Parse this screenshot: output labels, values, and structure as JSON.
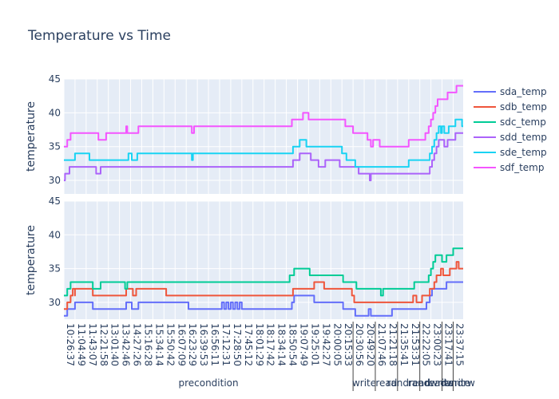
{
  "chart_data": {
    "type": "line",
    "title": "Temperature vs Time",
    "x_ticks": [
      "10:26:37",
      "11:04:49",
      "11:43:07",
      "12:21:58",
      "13:01:40",
      "13:42:46",
      "14:27:26",
      "15:16:28",
      "15:34:14",
      "15:50:42",
      "16:07:09",
      "16:23:29",
      "16:39:53",
      "16:56:11",
      "17:12:31",
      "17:28:50",
      "17:45:12",
      "18:01:29",
      "18:17:42",
      "18:34:14",
      "18:50:54",
      "19:07:49",
      "19:25:01",
      "19:42:27",
      "20:00:05",
      "20:15:33",
      "20:30:56",
      "20:49:20",
      "21:07:46",
      "21:21:18",
      "21:35:41",
      "21:53:31",
      "22:22:05",
      "23:00:23",
      "23:17:41",
      "23:37:15"
    ],
    "phases": [
      {
        "label": "precondition",
        "start": 0,
        "end": 26
      },
      {
        "label": "write",
        "start": 26,
        "end": 28
      },
      {
        "label": "read",
        "start": 28,
        "end": 30
      },
      {
        "label": "randread",
        "start": 30,
        "end": 32
      },
      {
        "label": "randwrite",
        "start": 32,
        "end": 34
      },
      {
        "label": "readwrite",
        "start": 34,
        "end": 35
      },
      {
        "label": "randrw",
        "start": 35,
        "end": 35.9
      }
    ],
    "subplots": [
      {
        "ylabel": "temperature",
        "ylim": [
          28,
          45
        ],
        "yticks": [
          30,
          35,
          40,
          45
        ],
        "series": [
          {
            "name": "sdd_temp",
            "color": "#AB63FA",
            "x": [
              0,
              0.1,
              0.2,
              0.5,
              2.8,
              2.9,
              3.1,
              3.3,
              5.9,
              6,
              6.2,
              20.3,
              20.6,
              20.7,
              21.2,
              21.8,
              22.2,
              22.5,
              22.9,
              23.2,
              23.5,
              24.5,
              24.8,
              25.1,
              25.3,
              26.5,
              27.3,
              27.5,
              27.6,
              27.8,
              27.9,
              28,
              28.2,
              28.4,
              28.5,
              28.7,
              29,
              32.6,
              32.9,
              33.1,
              33.3,
              33.5,
              33.7,
              34,
              34.2,
              34.5,
              34.7,
              34.9,
              35.2,
              35.4,
              35.8,
              35.9
            ],
            "y": [
              30,
              31,
              31,
              32,
              32,
              31,
              31,
              32,
              32,
              32,
              32,
              32,
              33,
              33,
              34,
              34,
              33,
              33,
              32,
              32,
              33,
              33,
              32,
              32,
              32,
              31,
              31,
              30,
              31,
              31,
              31,
              31,
              31,
              31,
              31,
              31,
              31,
              31,
              32,
              33,
              34,
              35,
              36,
              36,
              35,
              36,
              36,
              36,
              37,
              37,
              37,
              37
            ]
          },
          {
            "name": "sde_temp",
            "color": "#19D3F3",
            "x": [
              0,
              0.6,
              0.7,
              0.8,
              1,
              1,
              2.1,
              2.2,
              2.3,
              5.5,
              5.6,
              5.8,
              5.9,
              6.1,
              6.2,
              6.6,
              11.4,
              11.5,
              11.6,
              20.3,
              20.6,
              21.2,
              21.8,
              22.2,
              22.8,
              24,
              25,
              25.4,
              25.8,
              26.1,
              26.2,
              28.5,
              29.6,
              31,
              31.5,
              32.3,
              32.7,
              32.9,
              33.1,
              33.3,
              33.5,
              33.7,
              33.9,
              34,
              34.2,
              34.4,
              34.6,
              34.8,
              35,
              35.2,
              35.5,
              35.8,
              35.9
            ],
            "y": [
              33,
              33,
              33,
              33,
              34,
              34,
              34,
              34,
              33,
              33,
              33,
              34,
              34,
              33,
              33,
              34,
              34,
              33,
              34,
              34,
              35,
              36,
              35,
              35,
              35,
              35,
              34,
              33,
              33,
              33,
              32,
              32,
              32,
              33,
              33,
              33,
              33,
              34,
              35,
              36,
              37,
              38,
              37,
              38,
              37,
              37,
              38,
              38,
              38,
              39,
              39,
              38,
              38
            ]
          },
          {
            "name": "sdf_temp",
            "color": "#F455FF",
            "x": [
              0,
              0.3,
              0.6,
              1,
              2.4,
              2.8,
              3.1,
              3.2,
              3.8,
              5.4,
              5.5,
              5.6,
              5.7,
              5.9,
              6.5,
              6.7,
              11.4,
              11.5,
              11.7,
              20.3,
              20.5,
              21,
              21.5,
              21.8,
              22,
              22.1,
              24.1,
              24.7,
              25.3,
              25.8,
              26,
              26.6,
              27.3,
              27.4,
              27.6,
              27.8,
              28,
              28.4,
              29.5,
              30.5,
              31,
              31.5,
              32.2,
              32.5,
              32.8,
              33,
              33.2,
              33.4,
              33.6,
              33.8,
              34,
              34.2,
              34.5,
              35,
              35.3,
              35.6,
              35.9
            ],
            "y": [
              35,
              36,
              37,
              37,
              37,
              37,
              36,
              36,
              37,
              37,
              37,
              38,
              37,
              37,
              37,
              38,
              38,
              37,
              38,
              38,
              39,
              39,
              40,
              40,
              39,
              39,
              39,
              39,
              38,
              38,
              37,
              37,
              36,
              36,
              35,
              36,
              36,
              35,
              35,
              35,
              36,
              36,
              36,
              37,
              38,
              39,
              40,
              41,
              42,
              42,
              42,
              42,
              43,
              43,
              44,
              44,
              44
            ]
          }
        ]
      },
      {
        "ylabel": "temperature",
        "ylim": [
          27.5,
          45
        ],
        "yticks": [
          30,
          35,
          40,
          45
        ],
        "series": [
          {
            "name": "sda_temp",
            "color": "#636EFA",
            "x": [
              0,
              0.3,
              0.6,
              1,
              2.3,
              2.6,
              5.4,
              5.6,
              5.8,
              6.1,
              6.7,
              11.1,
              11.2,
              11.3,
              14,
              14.2,
              14.4,
              14.6,
              14.8,
              15,
              15.2,
              15.4,
              15.6,
              15.8,
              16,
              16.2,
              20,
              20.5,
              20.7,
              21.3,
              21.8,
              22.1,
              22.5,
              23,
              24.2,
              25.1,
              25.9,
              26.2,
              27.3,
              27.4,
              27.6,
              28,
              28.2,
              28.4,
              28.7,
              29.4,
              29.5,
              30.6,
              31.3,
              31.6,
              32.1,
              32.3,
              32.6,
              32.9,
              33.1,
              33.3,
              33.8,
              34.4,
              34.8,
              35.1,
              35.4,
              35.7,
              35.9
            ],
            "y": [
              28,
              29,
              29,
              30,
              30,
              29,
              29,
              30,
              30,
              29,
              30,
              30,
              29,
              29,
              29,
              30,
              29,
              30,
              29,
              30,
              29,
              30,
              29,
              30,
              29,
              29,
              29,
              30,
              31,
              31,
              31,
              31,
              30,
              30,
              30,
              29,
              29,
              28,
              28,
              29,
              28,
              28,
              28,
              28,
              28,
              28,
              29,
              29,
              29,
              29,
              29,
              29,
              30,
              31,
              32,
              32,
              32,
              33,
              33,
              33,
              33,
              33,
              33
            ]
          },
          {
            "name": "sdb_temp",
            "color": "#EF553B",
            "x": [
              0,
              0.3,
              0.6,
              0.8,
              1,
              1,
              2.2,
              2.5,
              2.6,
              2.8,
              5.3,
              5.6,
              6.2,
              6.5,
              9,
              9.2,
              11,
              11.3,
              20,
              20.2,
              20.6,
              22.5,
              22.9,
              23.4,
              25.1,
              25.9,
              26.1,
              27.8,
              29,
              31.2,
              31.4,
              31.7,
              32.2,
              32.5,
              32.9,
              33.3,
              33.5,
              33.9,
              34.1,
              34.3,
              34.7,
              35,
              35.3,
              35.5,
              35.7,
              35.9
            ],
            "y": [
              29,
              30,
              31,
              32,
              31,
              32,
              32,
              32,
              31,
              31,
              31,
              32,
              31,
              32,
              32,
              31,
              31,
              31,
              31,
              31,
              32,
              33,
              33,
              32,
              32,
              31,
              30,
              30,
              30,
              30,
              31,
              30,
              31,
              31,
              32,
              33,
              34,
              35,
              34,
              34,
              35,
              35,
              36,
              35,
              35,
              35
            ]
          },
          {
            "name": "sdc_temp",
            "color": "#00CC96",
            "x": [
              0,
              0.3,
              0.6,
              2.3,
              2.6,
              3.1,
              3.3,
              5.4,
              5.5,
              5.7,
              6,
              20,
              20.3,
              20.7,
              21.3,
              22.1,
              22.4,
              23.6,
              24.7,
              25.1,
              25.7,
              26.3,
              27.3,
              28,
              28.5,
              28.7,
              29.1,
              31.3,
              31.5,
              32.3,
              32.6,
              32.8,
              33,
              33.2,
              33.4,
              33.7,
              34,
              34.4,
              34.7,
              35,
              35.4,
              35.6,
              35.9
            ],
            "y": [
              31,
              32,
              33,
              33,
              32,
              32,
              33,
              33,
              32,
              33,
              33,
              33,
              34,
              35,
              35,
              34,
              34,
              34,
              34,
              33,
              33,
              32,
              32,
              32,
              31,
              32,
              32,
              32,
              33,
              33,
              33,
              34,
              35,
              36,
              37,
              37,
              36,
              37,
              37,
              38,
              38,
              38,
              38
            ]
          }
        ]
      }
    ],
    "legend": [
      "sda_temp",
      "sdb_temp",
      "sdc_temp",
      "sdd_temp",
      "sde_temp",
      "sdf_temp"
    ],
    "grid": true,
    "legend_position": "right"
  }
}
